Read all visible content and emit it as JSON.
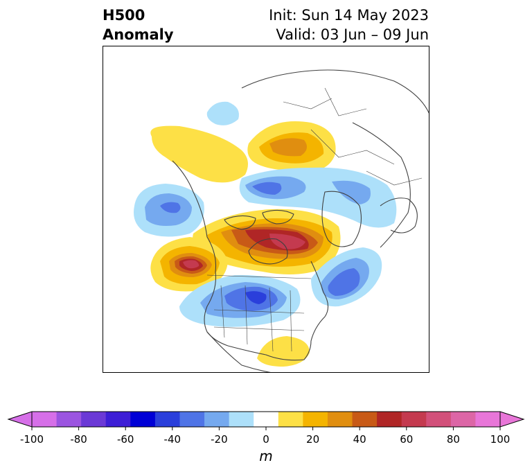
{
  "header": {
    "title_line1": "H500",
    "title_line2": "Anomaly",
    "init_label": "Init: Sun 14 May 2023",
    "valid_label": "Valid: 03 Jun – 09 Jun"
  },
  "map": {
    "projection": "polar stereographic (North America / Arctic)",
    "coastline_color": "#404040",
    "features": [
      "trough-east-pacific",
      "ridge-gulf-of-alaska",
      "ridge-central-canada",
      "trough-central-us",
      "trough-north-atlantic",
      "trough-arctic-siberia",
      "ridge-arctic-siberia",
      "ridge-western-siberia",
      "ridge-gulf-of-mexico"
    ]
  },
  "colorbar": {
    "unit": "m",
    "extend": "both",
    "levels": [
      -100,
      -90,
      -80,
      -70,
      -60,
      -50,
      -40,
      -30,
      -20,
      -10,
      10,
      20,
      30,
      40,
      50,
      60,
      70,
      80,
      90,
      100
    ],
    "tick_labels": [
      "-100",
      "-80",
      "-60",
      "-40",
      "-20",
      "0",
      "20",
      "40",
      "60",
      "80",
      "100"
    ],
    "colors": [
      "#d66fe8",
      "#9b54e0",
      "#6b39d6",
      "#3d1ed6",
      "#0000d6",
      "#2a3fdb",
      "#4f74e6",
      "#75a9ef",
      "#ade0fa",
      "#ffffff",
      "#fde046",
      "#f4b400",
      "#e08e10",
      "#c85a17",
      "#b02626",
      "#c43a4f",
      "#d2507a",
      "#dc66a6",
      "#e876d8"
    ],
    "under_color": "#d66fe8",
    "over_color": "#e876d8"
  }
}
